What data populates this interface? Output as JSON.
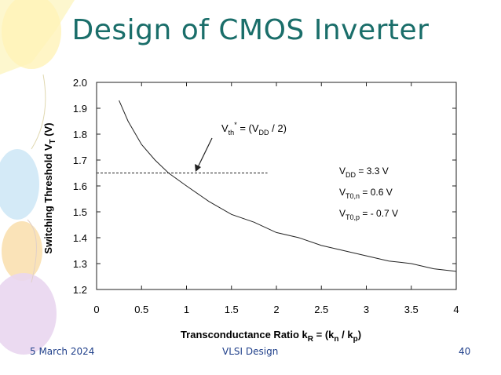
{
  "slide": {
    "title": "Design of CMOS Inverter",
    "footer_date": "5 March 2024",
    "footer_center": "VLSI Design",
    "page_number": "40"
  },
  "chart_data": {
    "type": "line",
    "xlabel": "Transconductance Ratio k_R = (k_n / k_p)",
    "ylabel": "Switching Threshold V_T (V)",
    "xlim": [
      0,
      4
    ],
    "ylim": [
      1.2,
      2.0
    ],
    "x_ticks": [
      "0",
      "0.5",
      "1",
      "1.5",
      "2",
      "2.5",
      "3",
      "3.5",
      "4"
    ],
    "y_ticks": [
      "1.2",
      "1.3",
      "1.4",
      "1.5",
      "1.6",
      "1.7",
      "1.8",
      "1.9",
      "2.0"
    ],
    "grid": false,
    "series": [
      {
        "x": [
          0.25,
          0.35,
          0.5,
          0.65,
          0.8,
          1.0,
          1.25,
          1.5,
          1.75,
          2.0,
          2.25,
          2.5,
          2.75,
          3.0,
          3.25,
          3.5,
          3.75,
          4.0
        ],
        "y": [
          1.93,
          1.85,
          1.76,
          1.7,
          1.65,
          1.6,
          1.54,
          1.49,
          1.46,
          1.42,
          1.4,
          1.37,
          1.35,
          1.33,
          1.31,
          1.3,
          1.28,
          1.27
        ]
      }
    ],
    "reference_line": {
      "y": 1.65,
      "x_start": 0,
      "x_end": 1.9,
      "style": "dashed"
    },
    "annotations": {
      "vth_label": "V_th* = (V_DD / 2)",
      "vdd": "V_DD = 3.3 V",
      "vt0n": "V_T0,n = 0.6 V",
      "vt0p": "V_T0,p = - 0.7 V"
    }
  }
}
